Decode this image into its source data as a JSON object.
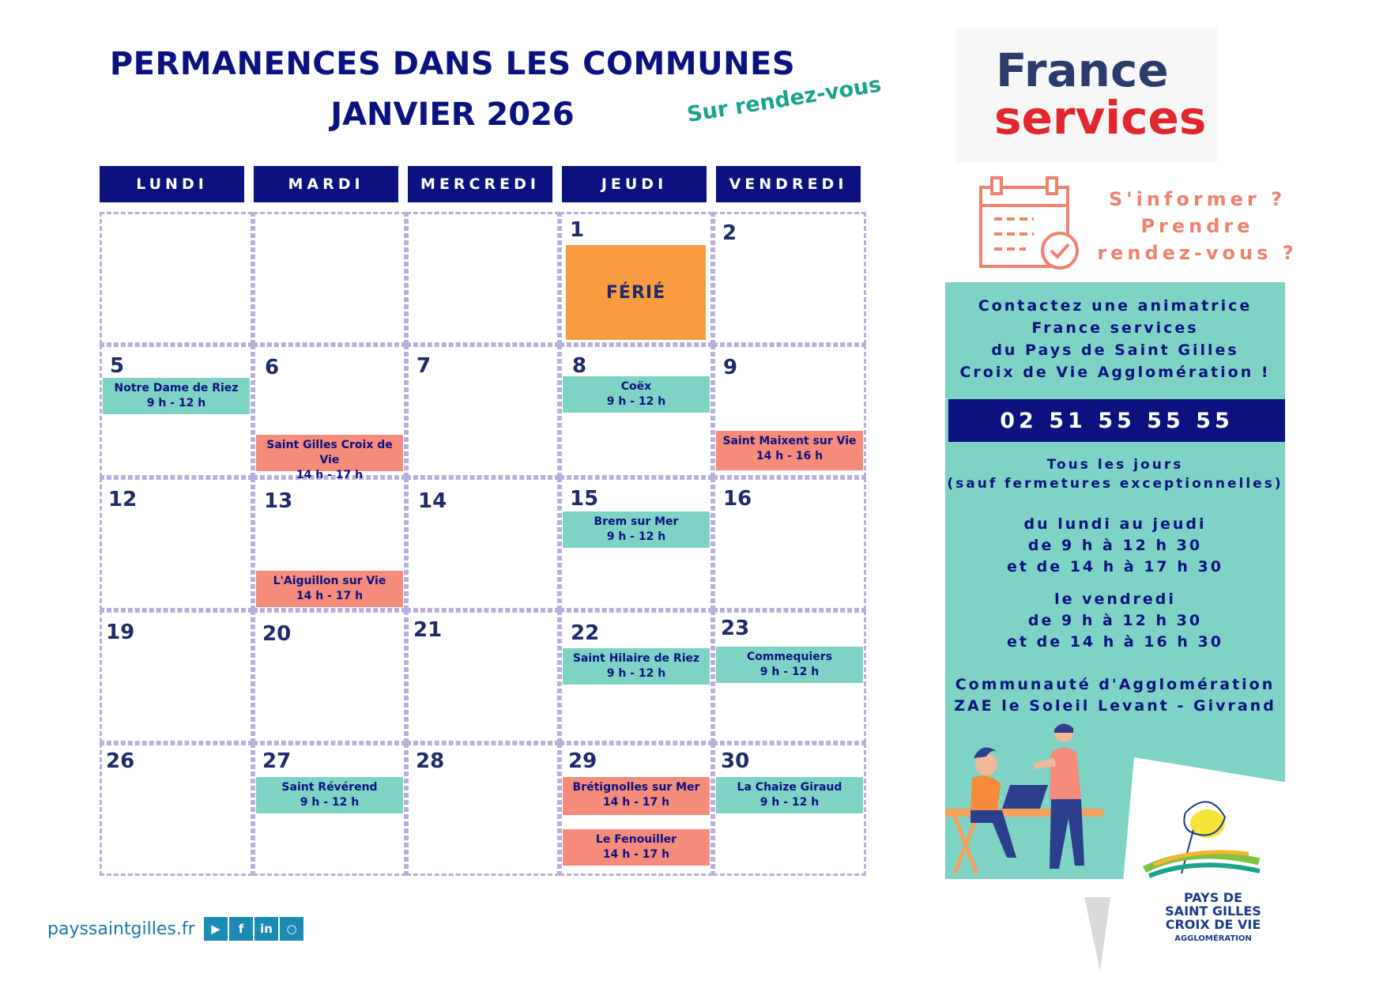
{
  "header": {
    "title_line1": "PERMANENCES DANS LES COMMUNES",
    "title_line2": "JANVIER 2026",
    "subtitle": "Sur rendez-vous"
  },
  "weekdays": [
    "LUNDI",
    "MARDI",
    "MERCREDI",
    "JEUDI",
    "VENDREDI"
  ],
  "days": [
    "1",
    "2",
    "5",
    "6",
    "7",
    "8",
    "9",
    "12",
    "13",
    "14",
    "15",
    "16",
    "19",
    "20",
    "21",
    "22",
    "23",
    "26",
    "27",
    "28",
    "29",
    "30"
  ],
  "events": [
    {
      "name": "FÉRIÉ",
      "time": "",
      "color": "orange"
    },
    {
      "name": "Notre Dame de Riez",
      "time": "9 h - 12 h",
      "color": "green"
    },
    {
      "name": "Saint Gilles Croix de Vie",
      "time": "14 h - 17 h",
      "color": "salmon"
    },
    {
      "name": "Coëx",
      "time": "9 h - 12 h",
      "color": "green"
    },
    {
      "name": "Saint Maixent sur Vie",
      "time": "14 h - 16 h",
      "color": "salmon"
    },
    {
      "name": "L'Aiguillon sur Vie",
      "time": "14 h - 17 h",
      "color": "salmon"
    },
    {
      "name": "Brem sur Mer",
      "time": "9 h - 12 h",
      "color": "green"
    },
    {
      "name": "Saint Hilaire de Riez",
      "time": "9 h - 12 h",
      "color": "green"
    },
    {
      "name": "Commequiers",
      "time": "9 h - 12 h",
      "color": "green"
    },
    {
      "name": "Saint Révérend",
      "time": "9 h - 12 h",
      "color": "green"
    },
    {
      "name": "Brétignolles sur Mer",
      "time": "14 h - 17 h",
      "color": "salmon"
    },
    {
      "name": "Le Fenouiller",
      "time": "14 h - 17 h",
      "color": "salmon"
    },
    {
      "name": "La Chaize Giraud",
      "time": "9 h - 12 h",
      "color": "green"
    }
  ],
  "brand": {
    "line1": "France",
    "line2": "services"
  },
  "question": {
    "line1": "S'informer ?",
    "line2": "Prendre",
    "line3": "rendez-vous ?"
  },
  "contact": {
    "line1": "Contactez une animatrice",
    "line2": "France services",
    "line3": "du Pays de Saint Gilles",
    "line4": "Croix de Vie Agglomération !",
    "phone": "02 51 55 55 55",
    "days1": "Tous les jours",
    "days2": "(sauf fermetures exceptionnelles)",
    "hours1": "du lundi au jeudi",
    "hours2": "de 9 h à 12 h 30",
    "hours3": "et de 14 h à 17 h 30",
    "hours4": "le vendredi",
    "hours5": "de 9 h à 12 h 30",
    "hours6": "et de 14 h à 16 h 30",
    "address1": "Communauté d'Agglomération",
    "address2": "ZAE le Soleil Levant - Givrand"
  },
  "logo": {
    "line1": "PAYS DE",
    "line2": "SAINT GILLES",
    "line3": "CROIX DE VIE",
    "line4": "AGGLOMÉRATION"
  },
  "footer": {
    "url": "payssaintgilles.fr",
    "social_icons": [
      "youtube-icon",
      "facebook-icon",
      "linkedin-icon",
      "instagram-icon"
    ]
  },
  "colors": {
    "navy": "#0b1280",
    "teal": "#7fd3c4",
    "salmon": "#f58b7a",
    "orange": "#f99c41",
    "red": "#e2262d"
  }
}
